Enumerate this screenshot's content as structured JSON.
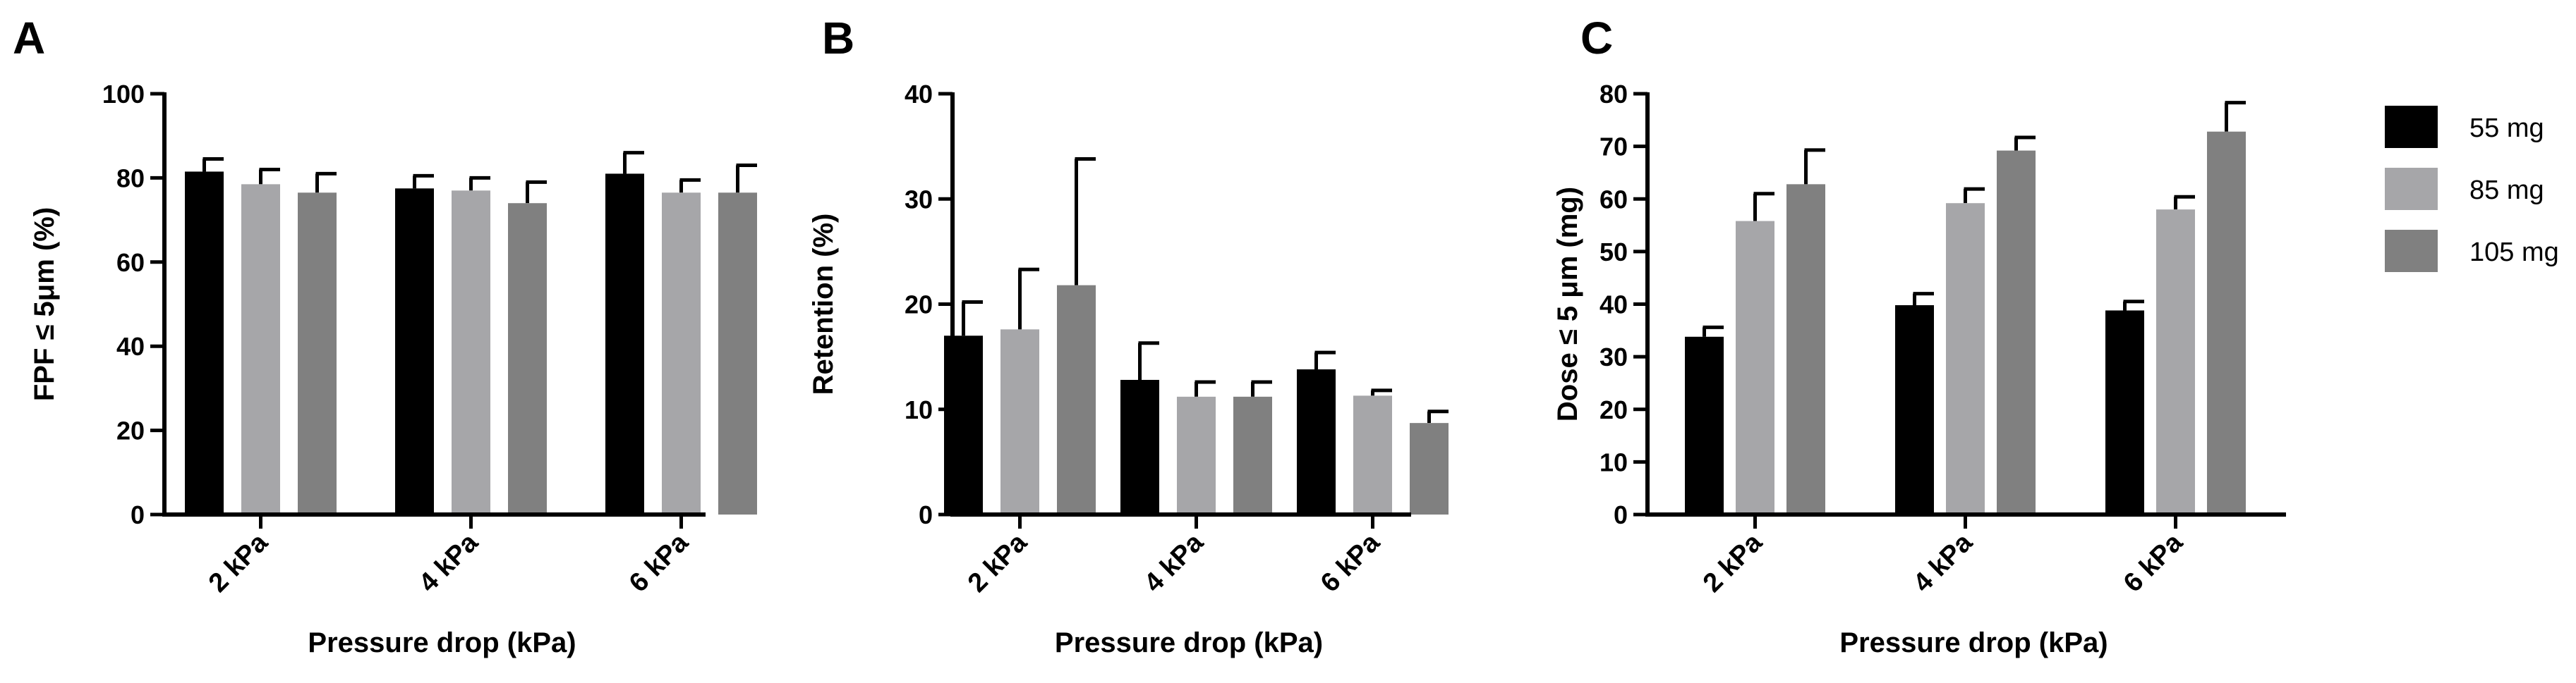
{
  "colors": {
    "55 mg": "#000000",
    "85 mg": "#a6a6a9",
    "105 mg": "#808080"
  },
  "legend": [
    "55 mg",
    "85 mg",
    "105 mg"
  ],
  "chart_data": [
    {
      "panel": "A",
      "type": "bar",
      "categories": [
        "2 kPa",
        "4 kPa",
        "6 kPa"
      ],
      "xlabel": "Pressure drop (kPa)",
      "ylabel": "FPF ≤ 5μm (%)",
      "ylim": [
        0,
        100
      ],
      "yticks": [
        0,
        20,
        40,
        60,
        80,
        100
      ],
      "series": [
        {
          "name": "55 mg",
          "values": [
            81.5,
            77.5,
            81
          ],
          "errors": [
            3,
            3,
            5
          ]
        },
        {
          "name": "85 mg",
          "values": [
            78.5,
            77,
            76.5
          ],
          "errors": [
            3.5,
            3,
            3
          ]
        },
        {
          "name": "105 mg",
          "values": [
            76.5,
            74,
            76.5
          ],
          "errors": [
            4.5,
            5,
            6.5
          ]
        }
      ]
    },
    {
      "panel": "B",
      "type": "bar",
      "categories": [
        "2 kPa",
        "4 kPa",
        "6 kPa"
      ],
      "xlabel": "Pressure drop (kPa)",
      "ylabel": "Retention (%)",
      "ylim": [
        0,
        40
      ],
      "yticks": [
        0,
        10,
        20,
        30,
        40
      ],
      "series": [
        {
          "name": "55 mg",
          "values": [
            17,
            12.8,
            13.8
          ],
          "errors": [
            3.2,
            3.5,
            1.6
          ]
        },
        {
          "name": "85 mg",
          "values": [
            17.6,
            11.2,
            11.3
          ],
          "errors": [
            5.7,
            1.4,
            0.5
          ]
        },
        {
          "name": "105 mg",
          "values": [
            21.8,
            11.2,
            8.7
          ],
          "errors": [
            12,
            1.4,
            1.1
          ]
        }
      ]
    },
    {
      "panel": "C",
      "type": "bar",
      "categories": [
        "2 kPa",
        "4 kPa",
        "6 kPa"
      ],
      "xlabel": "Pressure drop (kPa)",
      "ylabel": "Dose ≤ 5 μm (mg)",
      "ylim": [
        0,
        80
      ],
      "yticks": [
        0,
        10,
        20,
        30,
        40,
        50,
        60,
        70,
        80
      ],
      "series": [
        {
          "name": "55 mg",
          "values": [
            33.8,
            39.8,
            38.8
          ],
          "errors": [
            1.8,
            2.2,
            1.7
          ]
        },
        {
          "name": "85 mg",
          "values": [
            55.8,
            59.2,
            58
          ],
          "errors": [
            5.2,
            2.7,
            2.4
          ]
        },
        {
          "name": "105 mg",
          "values": [
            62.8,
            69.2,
            72.8
          ],
          "errors": [
            6.5,
            2.5,
            5.5
          ]
        }
      ]
    }
  ]
}
